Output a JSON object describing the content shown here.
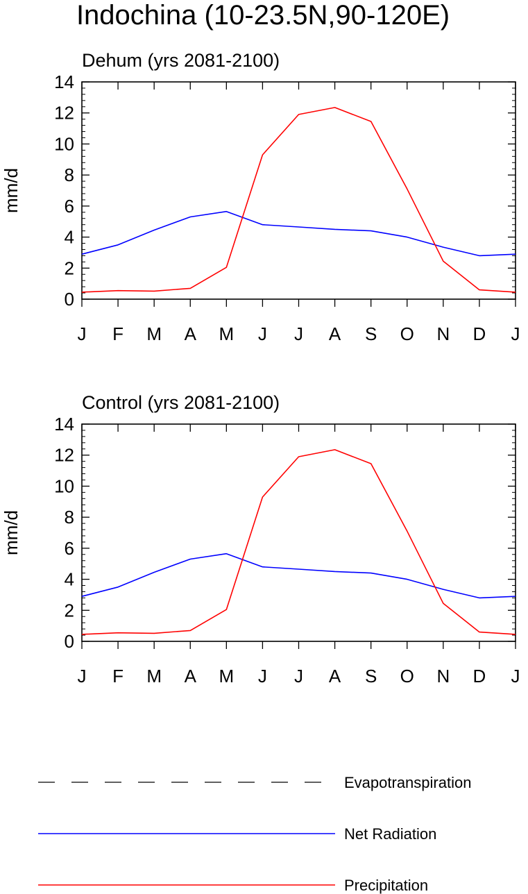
{
  "figure_title": "Indochina (10-23.5N,90-120E)",
  "colors": {
    "evapotranspiration": "#000000",
    "net_radiation": "#0000ff",
    "precipitation": "#ff0000"
  },
  "legend": {
    "placement": "bottom",
    "items": [
      {
        "label": "Evapotranspiration",
        "style": "dashed",
        "color": "#000000"
      },
      {
        "label": "Net Radiation",
        "style": "solid",
        "color": "#0000ff"
      },
      {
        "label": "Precipitation",
        "style": "solid",
        "color": "#ff0000"
      }
    ]
  },
  "chart_data": [
    {
      "type": "line",
      "title": "Dehum (yrs 2081-2100)",
      "xlabel": "",
      "ylabel": "mm/d",
      "categories": [
        "J",
        "F",
        "M",
        "A",
        "M",
        "J",
        "J",
        "A",
        "S",
        "O",
        "N",
        "D",
        "J"
      ],
      "ylim": [
        0,
        14
      ],
      "yticks": [
        0,
        2,
        4,
        6,
        8,
        10,
        12,
        14
      ],
      "grid": false,
      "series": [
        {
          "name": "Net Radiation",
          "color": "#0000ff",
          "values": [
            2.9,
            3.5,
            4.45,
            5.3,
            5.65,
            4.8,
            4.65,
            4.5,
            4.4,
            4.0,
            3.35,
            2.8,
            2.9
          ]
        },
        {
          "name": "Precipitation",
          "color": "#ff0000",
          "values": [
            0.45,
            0.55,
            0.52,
            0.7,
            2.05,
            9.3,
            11.9,
            12.35,
            11.45,
            7.1,
            2.45,
            0.6,
            0.45
          ]
        }
      ]
    },
    {
      "type": "line",
      "title": "Control (yrs 2081-2100)",
      "xlabel": "",
      "ylabel": "mm/d",
      "categories": [
        "J",
        "F",
        "M",
        "A",
        "M",
        "J",
        "J",
        "A",
        "S",
        "O",
        "N",
        "D",
        "J"
      ],
      "ylim": [
        0,
        14
      ],
      "yticks": [
        0,
        2,
        4,
        6,
        8,
        10,
        12,
        14
      ],
      "grid": false,
      "series": [
        {
          "name": "Net Radiation",
          "color": "#0000ff",
          "values": [
            2.9,
            3.5,
            4.45,
            5.3,
            5.65,
            4.8,
            4.65,
            4.5,
            4.4,
            4.0,
            3.35,
            2.8,
            2.9
          ]
        },
        {
          "name": "Precipitation",
          "color": "#ff0000",
          "values": [
            0.45,
            0.55,
            0.52,
            0.7,
            2.05,
            9.3,
            11.9,
            12.35,
            11.45,
            7.1,
            2.45,
            0.6,
            0.45
          ]
        }
      ]
    }
  ]
}
